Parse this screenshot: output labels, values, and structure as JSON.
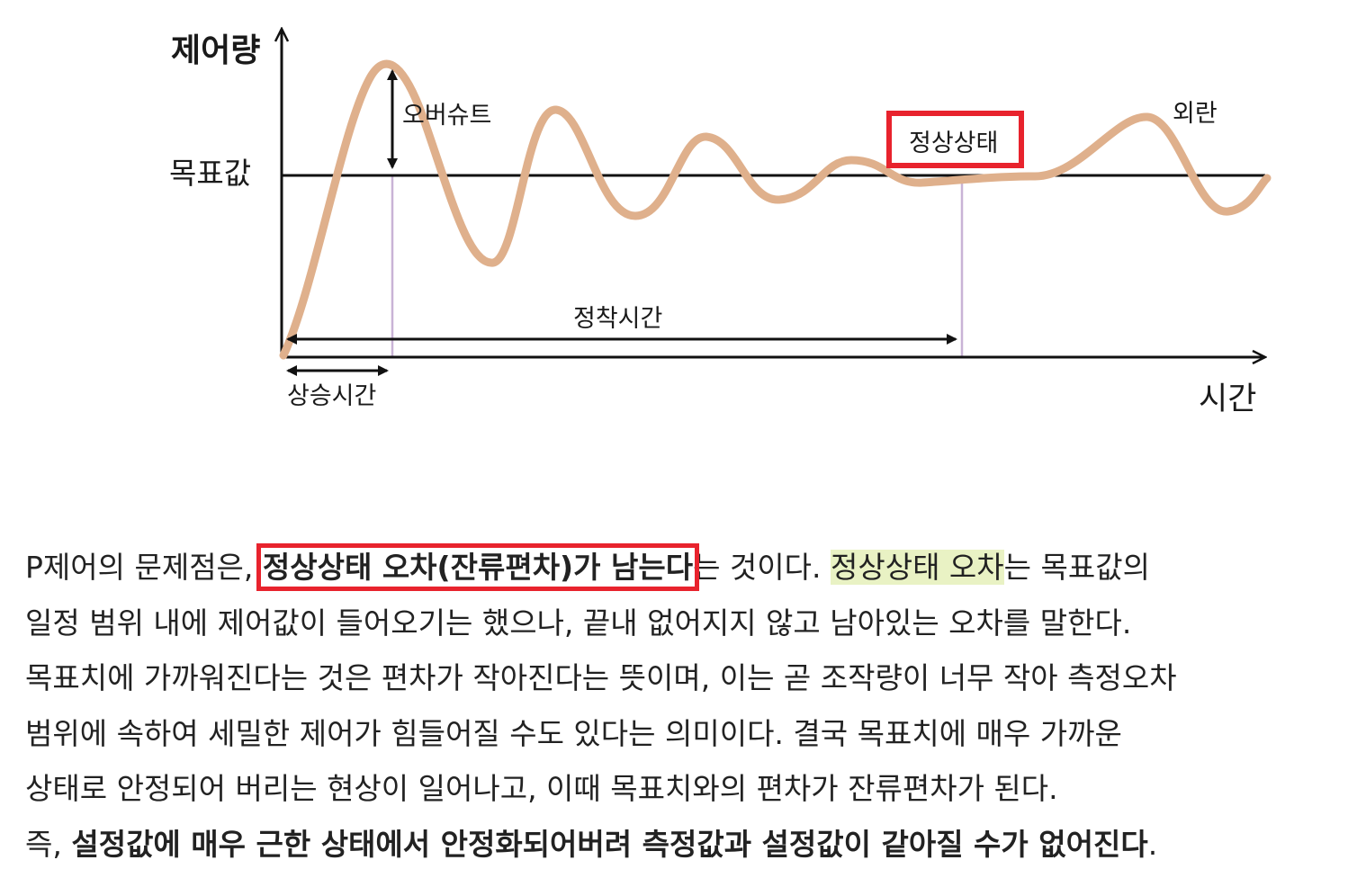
{
  "diagram": {
    "y_axis_label": "제어량",
    "x_axis_label": "시간",
    "setpoint_label": "목표값",
    "overshoot_label": "오버슈트",
    "steady_state_label": "정상상태",
    "disturbance_label": "외란",
    "settling_time_label": "정착시간",
    "rise_time_label": "상승시간",
    "colors": {
      "response_curve": "#dfb08c",
      "axes": "#111111",
      "highlight_box": "#e8232d",
      "guide_lines": "#c9b3d6"
    }
  },
  "article": {
    "line1": {
      "t1": "P제어의 문제점은, ",
      "boxed": "정상상태 오차(잔류편차)가 남는다",
      "t2": "는 것이다. ",
      "highlight": "정상상태 오차",
      "t3": "는 목표값의"
    },
    "line2": "일정 범위 내에 제어값이 들어오기는 했으나, 끝내 없어지지 않고 남아있는 오차를 말한다.",
    "line3": "목표치에 가까워진다는 것은 편차가 작아진다는 뜻이며, 이는 곧 조작량이 너무 작아 측정오차",
    "line4": "범위에 속하여 세밀한 제어가 힘들어질 수도 있다는 의미이다. 결국 목표치에 매우 가까운",
    "line5": "상태로 안정되어 버리는 현상이 일어나고, 이때 목표치와의 편차가 잔류편차가 된다.",
    "line6": {
      "t1": "즉, ",
      "bold": "설정값에 매우 근한 상태에서 안정화되어버려 측정값과 설정값이 같아질 수가 없어진다",
      "t2": "."
    }
  }
}
